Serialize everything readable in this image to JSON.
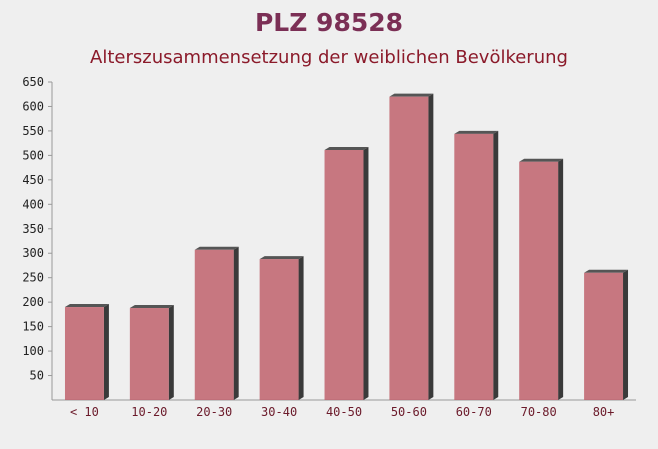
{
  "chart_data": {
    "type": "bar",
    "title": "PLZ 98528",
    "subtitle": "Alterszusammensetzung der weiblichen Bevölkerung",
    "categories": [
      "< 10",
      "10-20",
      "20-30",
      "30-40",
      "40-50",
      "50-60",
      "60-70",
      "70-80",
      "80+"
    ],
    "values": [
      190,
      188,
      307,
      288,
      511,
      620,
      544,
      487,
      260
    ],
    "color": "#c0626c",
    "ylim": [
      0,
      650
    ],
    "yticks": [
      50,
      100,
      150,
      200,
      250,
      300,
      350,
      400,
      450,
      500,
      550,
      600,
      650
    ]
  }
}
